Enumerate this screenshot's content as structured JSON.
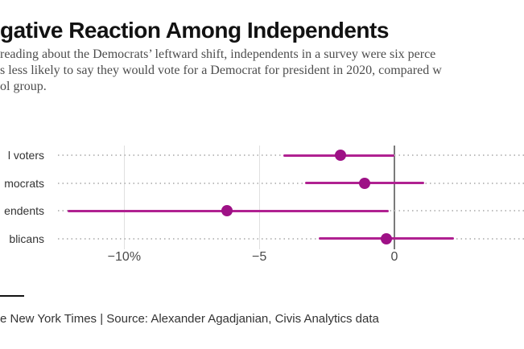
{
  "window": {
    "background": "#ffffff"
  },
  "header": {
    "title": "gative Reaction Among Independents",
    "subtitle_lines": [
      "reading about the Democrats’ leftward shift, independents in a survey were six perce",
      "s less likely to say they would vote for a Democrat for president in 2020, compared w",
      "ol group."
    ]
  },
  "chart_data": {
    "type": "scatter",
    "variant": "horizontal_dot_plot_with_error_bars",
    "categories": [
      "l voters",
      "mocrats",
      "endents",
      "blicans"
    ],
    "values": [
      -2.0,
      -1.1,
      -6.2,
      -0.3
    ],
    "ci_low": [
      -4.1,
      -3.3,
      -12.1,
      -2.8
    ],
    "ci_high": [
      0.0,
      1.1,
      -0.2,
      2.2
    ],
    "units": "percentage points",
    "x_ticks": [
      {
        "label": "−10%",
        "value": -10
      },
      {
        "label": "−5",
        "value": -5
      },
      {
        "label": "0",
        "value": 0
      }
    ],
    "xlim": [
      -14.6,
      4.8
    ],
    "grid": "vertical gridlines at ticks, dotted leader line per row",
    "legend": "none",
    "colors": {
      "marker": "#9e1186",
      "bar": "#b02191",
      "leader_dots": "#bdbdbd",
      "gridline": "#e0e0e0",
      "zero_line": "#7a7a7a"
    }
  },
  "footer": {
    "credit": "e New York Times | Source:  Alexander Agadjanian, Civis Analytics data"
  }
}
